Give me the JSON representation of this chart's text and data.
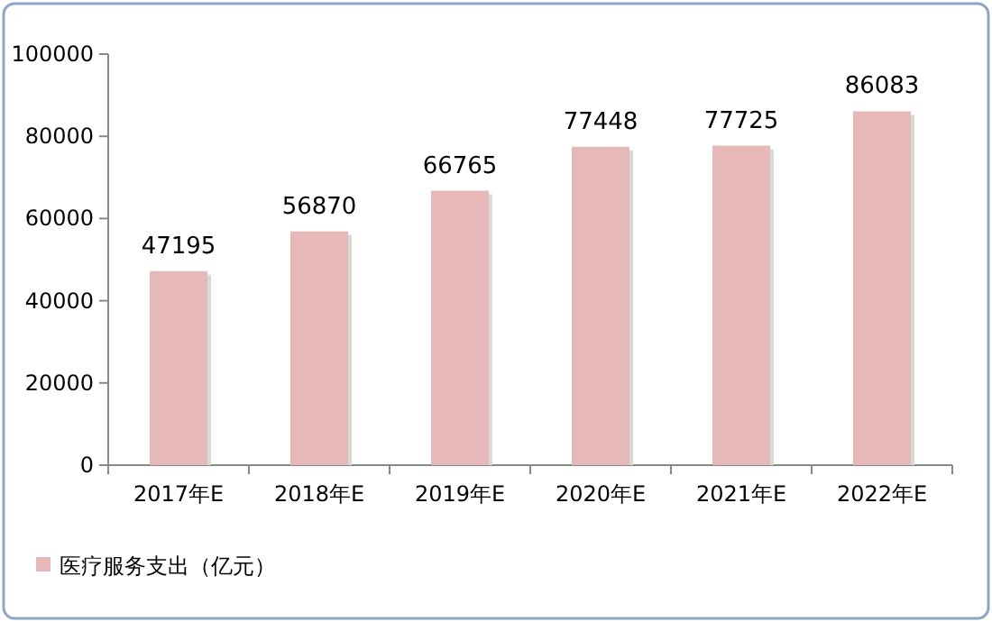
{
  "chart_data": {
    "type": "bar",
    "categories": [
      "2017年E",
      "2018年E",
      "2019年E",
      "2020年E",
      "2021年E",
      "2022年E"
    ],
    "series": [
      {
        "name": "医疗服务支出（亿元）",
        "color": "#e6b9b8",
        "values": [
          47195,
          56870,
          66765,
          77448,
          77725,
          86083
        ]
      }
    ],
    "ylim": [
      0,
      100000
    ],
    "yticks": [
      0,
      20000,
      40000,
      60000,
      80000,
      100000
    ],
    "data_labels": true,
    "legend": "bottom left"
  }
}
